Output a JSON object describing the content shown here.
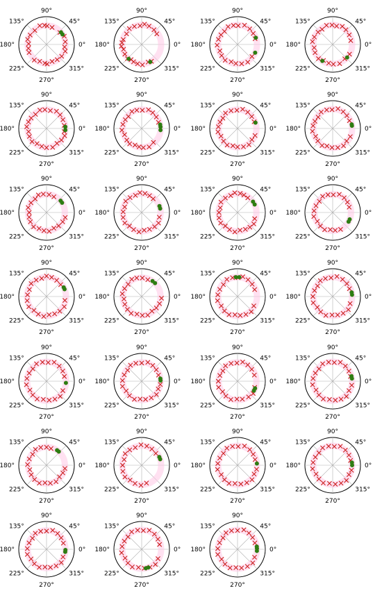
{
  "figure": {
    "theta_tick_labels": {
      "deg_0": "0°",
      "deg_45": "45°",
      "deg_90": "90°",
      "deg_135": "135°",
      "deg_180": "180°",
      "deg_225": "225°",
      "deg_270": "270°",
      "deg_315": "315°"
    }
  },
  "colors": {
    "x_marker": "#cc1f1f",
    "dot_marker": "#2e7d12",
    "ring_highlight": "#ffc8e6",
    "grid": "#b0b0b0",
    "axis": "#000000"
  },
  "chart_data": [
    {
      "type": "scatter",
      "polar": true,
      "r_range": [
        0,
        1
      ],
      "ring_radius": 0.68,
      "x_angles_deg": [
        72,
        88,
        96,
        110,
        130,
        150,
        165,
        178,
        192,
        205,
        232,
        248,
        265,
        272,
        288,
        305,
        322,
        340,
        352,
        8,
        25,
        42
      ],
      "dot_angles_deg": [
        32,
        40
      ]
    },
    {
      "type": "scatter",
      "polar": true,
      "r_range": [
        0,
        1
      ],
      "ring_radius": 0.7,
      "x_angles_deg": [
        35,
        50,
        68,
        82,
        95,
        112,
        128,
        145,
        165,
        175,
        185,
        195,
        210,
        225,
        235,
        245,
        258,
        272,
        290,
        300
      ],
      "dot_angles_deg": [
        228,
        296
      ]
    },
    {
      "type": "scatter",
      "polar": true,
      "r_range": [
        0,
        1
      ],
      "ring_radius": 0.7,
      "x_angles_deg": [
        18,
        35,
        52,
        70,
        88,
        102,
        118,
        135,
        150,
        165,
        182,
        200,
        215,
        232,
        250,
        265,
        282,
        300,
        320
      ],
      "dot_angles_deg": [
        335,
        20
      ]
    },
    {
      "type": "scatter",
      "polar": true,
      "r_range": [
        0,
        1
      ],
      "ring_radius": 0.7,
      "x_angles_deg": [
        12,
        30,
        48,
        62,
        78,
        92,
        108,
        125,
        140,
        158,
        172,
        190,
        205,
        225,
        240,
        258,
        272,
        290,
        310,
        330
      ],
      "dot_angles_deg": [
        318,
        238
      ]
    },
    {
      "type": "scatter",
      "polar": true,
      "r_range": [
        0,
        1
      ],
      "ring_radius": 0.68,
      "x_angles_deg": [
        10,
        28,
        45,
        60,
        78,
        95,
        110,
        128,
        146,
        160,
        175,
        190,
        205,
        222,
        238,
        255,
        270,
        288,
        305,
        322,
        338,
        350
      ],
      "dot_angles_deg": [
        355,
        5
      ]
    },
    {
      "type": "scatter",
      "polar": true,
      "r_range": [
        0,
        1
      ],
      "ring_radius": 0.68,
      "x_angles_deg": [
        20,
        38,
        55,
        70,
        88,
        105,
        120,
        138,
        152,
        168,
        185,
        200,
        218,
        232,
        248,
        262,
        275,
        292,
        310
      ],
      "dot_angles_deg": [
        355,
        5,
        12
      ]
    },
    {
      "type": "scatter",
      "polar": true,
      "r_range": [
        0,
        1
      ],
      "ring_radius": 0.68,
      "x_angles_deg": [
        22,
        40,
        58,
        75,
        92,
        110,
        128,
        145,
        160,
        175,
        190,
        205,
        222,
        238,
        255,
        270,
        288,
        305,
        322,
        338
      ],
      "dot_angles_deg": [
        18
      ]
    },
    {
      "type": "scatter",
      "polar": true,
      "r_range": [
        0,
        1
      ],
      "ring_radius": 0.7,
      "x_angles_deg": [
        25,
        42,
        58,
        75,
        92,
        108,
        125,
        142,
        158,
        172,
        188,
        205,
        220,
        238,
        252,
        268,
        285,
        302,
        318,
        335
      ],
      "dot_angles_deg": [
        8,
        12
      ]
    },
    {
      "type": "scatter",
      "polar": true,
      "r_range": [
        0,
        1
      ],
      "ring_radius": 0.66,
      "x_angles_deg": [
        65,
        82,
        100,
        115,
        130,
        148,
        165,
        180,
        195,
        210,
        228,
        245,
        262,
        278,
        295,
        312,
        330,
        345
      ],
      "dot_angles_deg": [
        32,
        40
      ]
    },
    {
      "type": "scatter",
      "polar": true,
      "r_range": [
        0,
        1
      ],
      "ring_radius": 0.68,
      "x_angles_deg": [
        50,
        65,
        80,
        95,
        110,
        128,
        145,
        162,
        178,
        195,
        212,
        228,
        245,
        262,
        278,
        295,
        312,
        328,
        345
      ],
      "dot_angles_deg": [
        12,
        20
      ]
    },
    {
      "type": "scatter",
      "polar": true,
      "r_range": [
        0,
        1
      ],
      "ring_radius": 0.68,
      "x_angles_deg": [
        55,
        70,
        82,
        98,
        112,
        130,
        148,
        165,
        180,
        196,
        212,
        228,
        245,
        262,
        278,
        295,
        310,
        325,
        340
      ],
      "dot_angles_deg": [
        25,
        35
      ]
    },
    {
      "type": "scatter",
      "polar": true,
      "r_range": [
        0,
        1
      ],
      "ring_radius": 0.66,
      "x_angles_deg": [
        18,
        35,
        52,
        70,
        88,
        105,
        122,
        140,
        158,
        175,
        192,
        210,
        228,
        245,
        262,
        278,
        295
      ],
      "dot_angles_deg": [
        330,
        338
      ]
    },
    {
      "type": "scatter",
      "polar": true,
      "r_range": [
        0,
        1
      ],
      "ring_radius": 0.7,
      "x_angles_deg": [
        40,
        58,
        75,
        90,
        105,
        122,
        140,
        158,
        175,
        192,
        210,
        228,
        245,
        262,
        278,
        295,
        312,
        330,
        348
      ],
      "dot_angles_deg": [
        22,
        28
      ]
    },
    {
      "type": "scatter",
      "polar": true,
      "r_range": [
        0,
        1
      ],
      "ring_radius": 0.68,
      "x_angles_deg": [
        70,
        88,
        105,
        120,
        138,
        155,
        172,
        188,
        205,
        222,
        238,
        255,
        272,
        288,
        305,
        322,
        338,
        355
      ],
      "dot_angles_deg": [
        45,
        55
      ]
    },
    {
      "type": "scatter",
      "polar": true,
      "r_range": [
        0,
        1
      ],
      "ring_radius": 0.7,
      "x_angles_deg": [
        22,
        40,
        58,
        75,
        88,
        105,
        122,
        140,
        158,
        175,
        192,
        210,
        228,
        245,
        262,
        278,
        295,
        312,
        330
      ],
      "dot_angles_deg": [
        85,
        95
      ]
    },
    {
      "type": "scatter",
      "polar": true,
      "r_range": [
        0,
        1
      ],
      "ring_radius": 0.7,
      "x_angles_deg": [
        25,
        42,
        60,
        78,
        95,
        112,
        128,
        145,
        162,
        180,
        198,
        215,
        232,
        250,
        268,
        285,
        302,
        320,
        338
      ],
      "dot_angles_deg": [
        5,
        12
      ]
    },
    {
      "type": "scatter",
      "polar": true,
      "r_range": [
        0,
        1
      ],
      "ring_radius": 0.7,
      "x_angles_deg": [
        15,
        32,
        50,
        68,
        85,
        102,
        120,
        138,
        155,
        172,
        190,
        208,
        225,
        242,
        260,
        278,
        295,
        312,
        330
      ],
      "dot_angles_deg": [
        355
      ]
    },
    {
      "type": "scatter",
      "polar": true,
      "r_range": [
        0,
        1
      ],
      "ring_radius": 0.68,
      "x_angles_deg": [
        20,
        38,
        55,
        72,
        90,
        108,
        125,
        142,
        160,
        178,
        195,
        212,
        230,
        248,
        265,
        282,
        300,
        318,
        335,
        350
      ],
      "dot_angles_deg": [
        2,
        8
      ]
    },
    {
      "type": "scatter",
      "polar": true,
      "r_range": [
        0,
        1
      ],
      "ring_radius": 0.68,
      "x_angles_deg": [
        20,
        40,
        58,
        75,
        92,
        110,
        128,
        145,
        162,
        180,
        198,
        215,
        232,
        250,
        268,
        285,
        305,
        322,
        340
      ],
      "dot_angles_deg": [
        330,
        338
      ]
    },
    {
      "type": "scatter",
      "polar": true,
      "r_range": [
        0,
        1
      ],
      "ring_radius": 0.7,
      "x_angles_deg": [
        15,
        32,
        50,
        68,
        85,
        102,
        120,
        138,
        155,
        172,
        190,
        208,
        225,
        242,
        260,
        278,
        295,
        312,
        330,
        348
      ],
      "dot_angles_deg": [
        8,
        15
      ]
    },
    {
      "type": "scatter",
      "polar": true,
      "r_range": [
        0,
        1
      ],
      "ring_radius": 0.66,
      "x_angles_deg": [
        75,
        90,
        108,
        125,
        142,
        160,
        178,
        195,
        212,
        230,
        248,
        265,
        282,
        300,
        318,
        335,
        350
      ],
      "dot_angles_deg": [
        48,
        55
      ]
    },
    {
      "type": "scatter",
      "polar": true,
      "r_range": [
        0,
        1
      ],
      "ring_radius": 0.7,
      "x_angles_deg": [
        40,
        58,
        75,
        92,
        110,
        128,
        145,
        162,
        180,
        198,
        215,
        232,
        250,
        268,
        285
      ],
      "dot_angles_deg": [
        18,
        25
      ]
    },
    {
      "type": "scatter",
      "polar": true,
      "r_range": [
        0,
        1
      ],
      "ring_radius": 0.7,
      "x_angles_deg": [
        18,
        35,
        52,
        70,
        88,
        105,
        122,
        140,
        158,
        175,
        192,
        210,
        228,
        245,
        262,
        280,
        298,
        315,
        332,
        348
      ],
      "dot_angles_deg": [
        5
      ]
    },
    {
      "type": "scatter",
      "polar": true,
      "r_range": [
        0,
        1
      ],
      "ring_radius": 0.7,
      "x_angles_deg": [
        15,
        32,
        50,
        68,
        85,
        102,
        120,
        138,
        155,
        172,
        190,
        208,
        225,
        242,
        260,
        278,
        295,
        312,
        330,
        345
      ],
      "dot_angles_deg": [
        0,
        8
      ]
    },
    {
      "type": "scatter",
      "polar": true,
      "r_range": [
        0,
        1
      ],
      "ring_radius": 0.68,
      "x_angles_deg": [
        20,
        38,
        55,
        72,
        90,
        108,
        125,
        142,
        160,
        178,
        195,
        212,
        230,
        248,
        265,
        282,
        300,
        318,
        335
      ],
      "dot_angles_deg": [
        352,
        358
      ]
    },
    {
      "type": "scatter",
      "polar": true,
      "r_range": [
        0,
        1
      ],
      "ring_radius": 0.7,
      "x_angles_deg": [
        15,
        32,
        50,
        68,
        85,
        102,
        120,
        138,
        155,
        172,
        190,
        208,
        225,
        242,
        260,
        278,
        295,
        312,
        330
      ],
      "dot_angles_deg": [
        282,
        290
      ]
    },
    {
      "type": "scatter",
      "polar": true,
      "r_range": [
        0,
        1
      ],
      "ring_radius": 0.7,
      "x_angles_deg": [
        20,
        38,
        55,
        72,
        90,
        108,
        125,
        142,
        160,
        178,
        195,
        212,
        230,
        248,
        265,
        282,
        300,
        318,
        335
      ],
      "dot_angles_deg": [
        2,
        8,
        355
      ]
    }
  ]
}
